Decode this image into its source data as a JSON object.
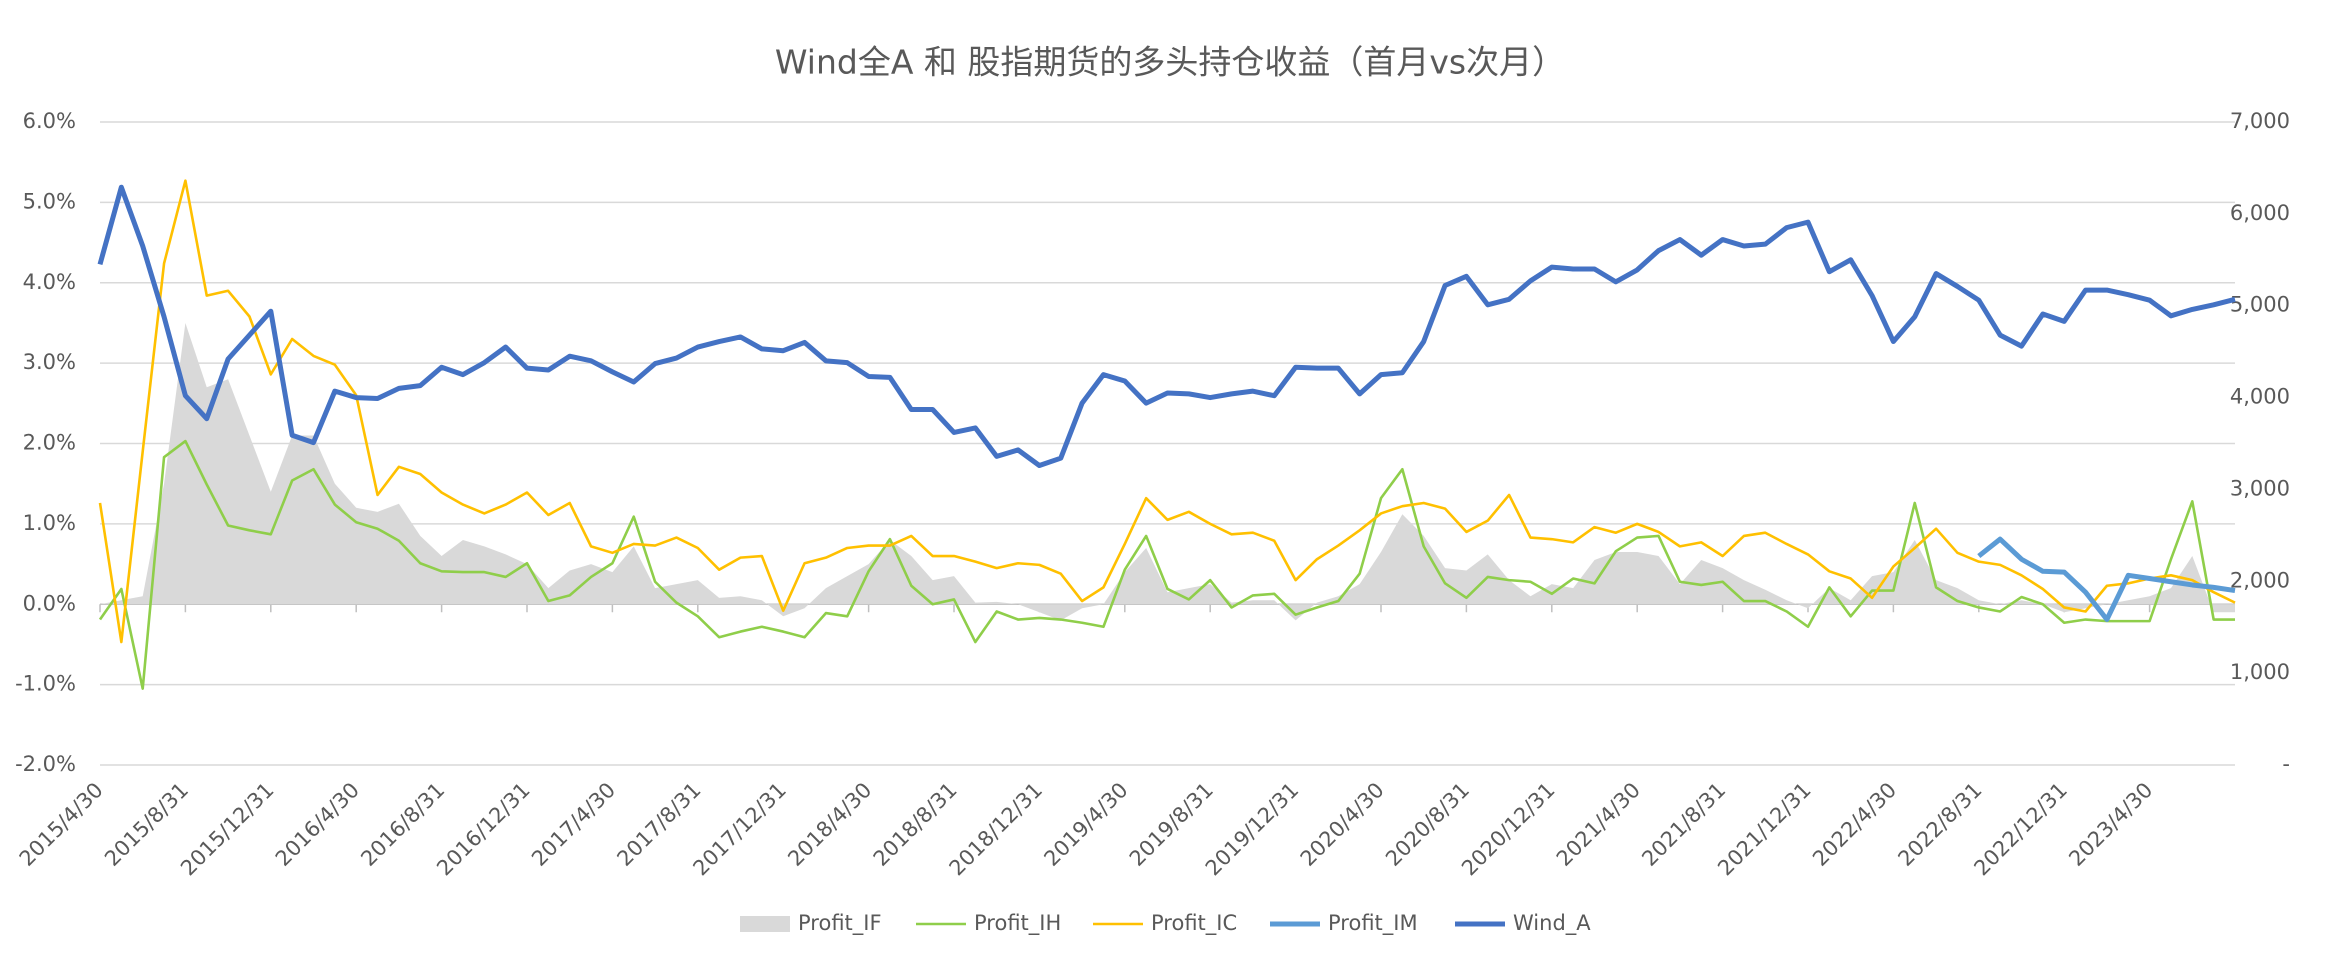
{
  "chart_data": {
    "type": "line",
    "title": "Wind全A 和 股指期货的多头持仓收益（首月vs次月）",
    "categories": [
      "2015/4/30",
      null,
      null,
      null,
      "2015/8/31",
      null,
      null,
      null,
      "2015/12/31",
      null,
      null,
      null,
      "2016/4/30",
      null,
      null,
      null,
      "2016/8/31",
      null,
      null,
      null,
      "2016/12/31",
      null,
      null,
      null,
      "2017/4/30",
      null,
      null,
      null,
      "2017/8/31",
      null,
      null,
      null,
      "2017/12/31",
      null,
      null,
      null,
      "2018/4/30",
      null,
      null,
      null,
      "2018/8/31",
      null,
      null,
      null,
      "2018/12/31",
      null,
      null,
      null,
      "2019/4/30",
      null,
      null,
      null,
      "2019/8/31",
      null,
      null,
      null,
      "2019/12/31",
      null,
      null,
      null,
      "2020/4/30",
      null,
      null,
      null,
      "2020/8/31",
      null,
      null,
      null,
      "2020/12/31",
      null,
      null,
      null,
      "2021/4/30",
      null,
      null,
      null,
      "2021/8/31",
      null,
      null,
      null,
      "2021/12/31",
      null,
      null,
      null,
      "2022/4/30",
      null,
      null,
      null,
      "2022/8/31",
      null,
      null,
      null,
      "2022/12/31",
      null,
      null,
      null,
      "2023/4/30",
      null,
      null,
      null,
      null
    ],
    "series": [
      {
        "name": "Profit_IF",
        "type": "area",
        "color": "#d9d9d9",
        "values": [
          0,
          0.05,
          0.1,
          1.5,
          3.5,
          2.7,
          2.8,
          2.1,
          1.4,
          2.1,
          2.1,
          1.5,
          1.2,
          1.15,
          1.25,
          0.85,
          0.6,
          0.8,
          0.72,
          0.62,
          0.5,
          0.2,
          0.42,
          0.5,
          0.4,
          0.72,
          0.2,
          0.25,
          0.3,
          0.08,
          0.1,
          0.05,
          -0.15,
          -0.05,
          0.2,
          0.35,
          0.5,
          0.8,
          0.6,
          0.3,
          0.35,
          0.02,
          0.03,
          0,
          -0.1,
          -0.2,
          -0.05,
          0,
          0.4,
          0.7,
          0.15,
          0.2,
          0.25,
          0.02,
          0.05,
          0.05,
          -0.2,
          0.02,
          0.1,
          0.25,
          0.65,
          1.12,
          0.85,
          0.45,
          0.42,
          0.62,
          0.3,
          0.1,
          0.25,
          0.2,
          0.55,
          0.65,
          0.65,
          0.6,
          0.25,
          0.55,
          0.45,
          0.3,
          0.18,
          0.05,
          -0.05,
          0.2,
          0.05,
          0.35,
          0.4,
          0.8,
          0.3,
          0.2,
          0.05,
          0,
          0.05,
          0,
          -0.1,
          -0.05,
          0,
          0.05,
          0.1,
          0.2,
          0.6,
          -0.1,
          -0.1
        ]
      },
      {
        "name": "Profit_IH",
        "color": "#8fce4a",
        "values": [
          -0.19,
          0.19,
          -1.05,
          1.83,
          2.03,
          1.49,
          0.98,
          0.92,
          0.87,
          1.54,
          1.68,
          1.24,
          1.02,
          0.94,
          0.79,
          0.51,
          0.41,
          0.4,
          0.4,
          0.34,
          0.51,
          0.04,
          0.11,
          0.34,
          0.51,
          1.09,
          0.28,
          0.02,
          -0.15,
          -0.41,
          -0.34,
          -0.28,
          -0.34,
          -0.41,
          -0.11,
          -0.15,
          0.41,
          0.81,
          0.23,
          0,
          0.06,
          -0.47,
          -0.09,
          -0.19,
          -0.17,
          -0.19,
          -0.23,
          -0.28,
          0.43,
          0.85,
          0.19,
          0.06,
          0.3,
          -0.04,
          0.11,
          0.13,
          -0.13,
          -0.04,
          0.04,
          0.38,
          1.32,
          1.68,
          0.72,
          0.26,
          0.08,
          0.34,
          0.3,
          0.28,
          0.13,
          0.32,
          0.26,
          0.66,
          0.83,
          0.85,
          0.28,
          0.24,
          0.28,
          0.04,
          0.04,
          -0.09,
          -0.28,
          0.21,
          -0.15,
          0.17,
          0.17,
          1.26,
          0.21,
          0.04,
          -0.04,
          -0.09,
          0.09,
          0,
          -0.23,
          -0.19,
          -0.21,
          -0.21,
          -0.21,
          0.56,
          1.28,
          -0.19,
          -0.19
        ]
      },
      {
        "name": "Profit_IC",
        "color": "#ffc000",
        "values": [
          1.26,
          -0.47,
          1.9,
          4.24,
          5.27,
          3.84,
          3.9,
          3.58,
          2.86,
          3.3,
          3.09,
          2.98,
          2.6,
          1.36,
          1.71,
          1.62,
          1.39,
          1.24,
          1.13,
          1.24,
          1.39,
          1.11,
          1.26,
          0.72,
          0.64,
          0.75,
          0.73,
          0.83,
          0.7,
          0.43,
          0.58,
          0.6,
          -0.08,
          0.51,
          0.58,
          0.7,
          0.73,
          0.73,
          0.85,
          0.6,
          0.6,
          0.53,
          0.45,
          0.51,
          0.49,
          0.38,
          0.04,
          0.21,
          0.75,
          1.32,
          1.05,
          1.15,
          1.0,
          0.87,
          0.89,
          0.79,
          0.3,
          0.56,
          0.73,
          0.92,
          1.13,
          1.22,
          1.26,
          1.19,
          0.9,
          1.04,
          1.36,
          0.83,
          0.81,
          0.77,
          0.96,
          0.89,
          1.0,
          0.9,
          0.72,
          0.77,
          0.6,
          0.85,
          0.89,
          0.75,
          0.62,
          0.41,
          0.32,
          0.08,
          0.47,
          0.7,
          0.94,
          0.64,
          0.53,
          0.49,
          0.36,
          0.19,
          -0.04,
          -0.09,
          0.23,
          0.26,
          0.32,
          0.36,
          0.3,
          0.15,
          0.02
        ]
      },
      {
        "name": "Profit_IM",
        "color": "#5b9bd5",
        "values": [
          null,
          null,
          null,
          null,
          null,
          null,
          null,
          null,
          null,
          null,
          null,
          null,
          null,
          null,
          null,
          null,
          null,
          null,
          null,
          null,
          null,
          null,
          null,
          null,
          null,
          null,
          null,
          null,
          null,
          null,
          null,
          null,
          null,
          null,
          null,
          null,
          null,
          null,
          null,
          null,
          null,
          null,
          null,
          null,
          null,
          null,
          null,
          null,
          null,
          null,
          null,
          null,
          null,
          null,
          null,
          null,
          null,
          null,
          null,
          null,
          null,
          null,
          null,
          null,
          null,
          null,
          null,
          null,
          null,
          null,
          null,
          null,
          null,
          null,
          null,
          null,
          null,
          null,
          null,
          null,
          null,
          null,
          null,
          null,
          null,
          null,
          null,
          null,
          0.6,
          0.81,
          0.56,
          0.41,
          0.4,
          0.15,
          -0.19,
          0.36,
          0.32,
          0.28,
          0.24,
          0.21,
          0.17
        ]
      },
      {
        "name": "Wind_A",
        "axis": "y2",
        "color": "#4472c4",
        "values": [
          5450,
          6290,
          5650,
          4880,
          4020,
          3770,
          4420,
          4680,
          4940,
          3590,
          3510,
          4070,
          4000,
          3990,
          4100,
          4130,
          4330,
          4250,
          4380,
          4550,
          4320,
          4300,
          4450,
          4400,
          4280,
          4170,
          4370,
          4430,
          4550,
          4610,
          4660,
          4530,
          4510,
          4600,
          4400,
          4380,
          4230,
          4220,
          3870,
          3870,
          3620,
          3670,
          3360,
          3430,
          3260,
          3340,
          3940,
          4250,
          4180,
          3940,
          4050,
          4040,
          4000,
          4040,
          4070,
          4020,
          4330,
          4320,
          4320,
          4040,
          4250,
          4270,
          4610,
          5220,
          5320,
          5010,
          5070,
          5270,
          5420,
          5400,
          5400,
          5260,
          5390,
          5600,
          5720,
          5550,
          5720,
          5650,
          5670,
          5850,
          5910,
          5370,
          5500,
          5110,
          4610,
          4880,
          5350,
          5210,
          5060,
          4680,
          4560,
          4910,
          4830,
          5170,
          5170,
          5120,
          5060,
          4890,
          4960,
          5010,
          5070
        ]
      }
    ],
    "ylim": [
      -2,
      6
    ],
    "yticks": [
      {
        "value": -2,
        "label": "-2.0%"
      },
      {
        "value": -1,
        "label": "-1.0%"
      },
      {
        "value": 0,
        "label": "0.0%"
      },
      {
        "value": 1,
        "label": "1.0%"
      },
      {
        "value": 2,
        "label": "2.0%"
      },
      {
        "value": 3,
        "label": "3.0%"
      },
      {
        "value": 4,
        "label": "4.0%"
      },
      {
        "value": 5,
        "label": "5.0%"
      },
      {
        "value": 6,
        "label": "6.0%"
      }
    ],
    "y2lim": [
      0,
      7000
    ],
    "y2ticks": [
      {
        "value": 0,
        "label": "-"
      },
      {
        "value": 1000,
        "label": "1,000"
      },
      {
        "value": 2000,
        "label": "2,000"
      },
      {
        "value": 3000,
        "label": "3,000"
      },
      {
        "value": 4000,
        "label": "4,000"
      },
      {
        "value": 5000,
        "label": "5,000"
      },
      {
        "value": 6000,
        "label": "6,000"
      },
      {
        "value": 7000,
        "label": "7,000"
      }
    ],
    "grid": true,
    "legend": "bottom"
  }
}
